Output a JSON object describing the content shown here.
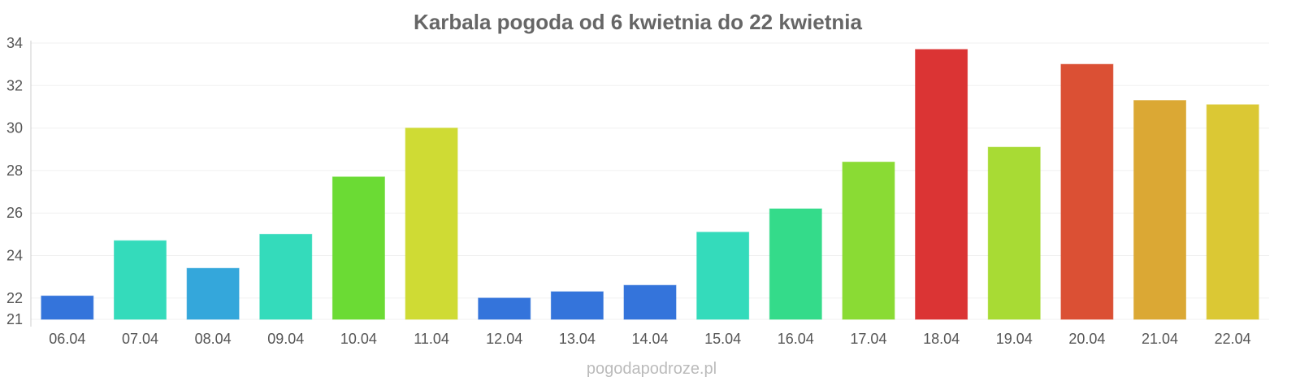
{
  "chart_data": {
    "type": "bar",
    "title": "Karbala pogoda od 6 kwietnia do 22 kwietnia",
    "xlabel": "",
    "ylabel": "",
    "ylim": [
      21,
      34
    ],
    "yticks": [
      21,
      22,
      24,
      26,
      28,
      30,
      32,
      34
    ],
    "grid": true,
    "categories": [
      "06.04",
      "07.04",
      "08.04",
      "09.04",
      "10.04",
      "11.04",
      "12.04",
      "13.04",
      "14.04",
      "15.04",
      "16.04",
      "17.04",
      "18.04",
      "19.04",
      "20.04",
      "21.04",
      "22.04"
    ],
    "values": [
      22.1,
      24.7,
      23.4,
      25.0,
      27.7,
      30.0,
      22.0,
      22.3,
      22.6,
      25.1,
      26.2,
      28.4,
      33.7,
      29.1,
      33.0,
      31.3,
      31.1
    ],
    "colors": [
      "#3474db",
      "#34dbbb",
      "#34a7db",
      "#34dbbb",
      "#6bdb34",
      "#cfdb34",
      "#3474db",
      "#3474db",
      "#3474db",
      "#34dbbb",
      "#34db8a",
      "#8adb34",
      "#db3434",
      "#a8db34",
      "#db5034",
      "#dba834",
      "#dbc834"
    ]
  },
  "watermark": "pogodapodroze.pl"
}
